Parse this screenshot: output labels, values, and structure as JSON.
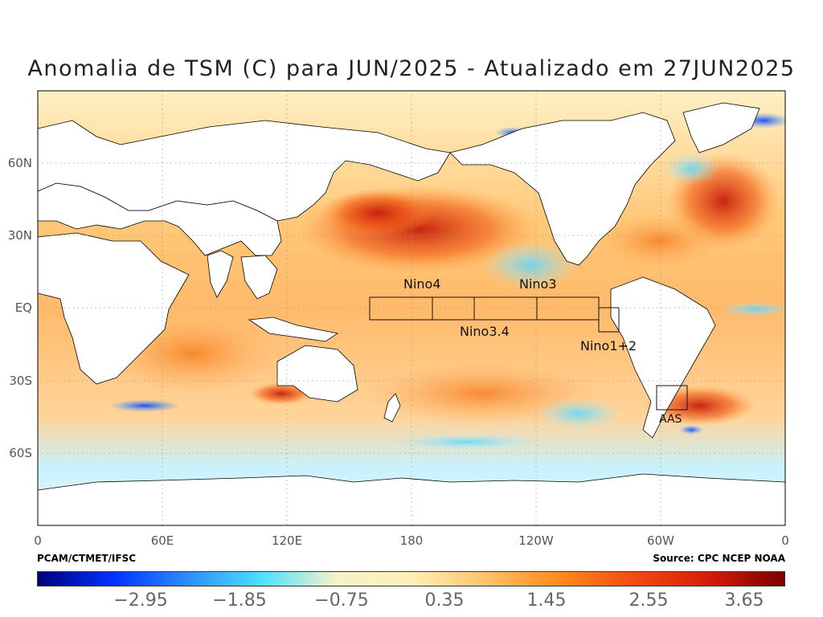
{
  "title": "Anomalia de TSM (C) para JUN/2025 - Atualizado em 27JUN2025",
  "map": {
    "x_ticks": [
      "0",
      "60E",
      "120E",
      "180",
      "120W",
      "60W",
      "0"
    ],
    "y_ticks": [
      "60N",
      "30N",
      "EQ",
      "30S",
      "60S"
    ],
    "regions": [
      {
        "name": "Nino4",
        "label": "Nino4"
      },
      {
        "name": "Nino3.4",
        "label": "Nino3.4"
      },
      {
        "name": "Nino3",
        "label": "Nino3"
      },
      {
        "name": "Nino1+2",
        "label": "Nino1+2"
      },
      {
        "name": "AAS",
        "label": "AAS"
      }
    ]
  },
  "credits": {
    "left": "PCAM/CTMET/IFSC",
    "right": "Source: CPC NCEP NOAA"
  },
  "colorbar": {
    "labels": [
      "−2.95",
      "−1.85",
      "−0.75",
      "0.35",
      "1.45",
      "2.55",
      "3.65"
    ],
    "colors": [
      "#00007a",
      "#0032ff",
      "#2f8cff",
      "#4fe0ff",
      "#f5f3c8",
      "#fff0b8",
      "#ffc26b",
      "#ff8a1e",
      "#f24a12",
      "#d41c0a",
      "#780000"
    ]
  }
}
